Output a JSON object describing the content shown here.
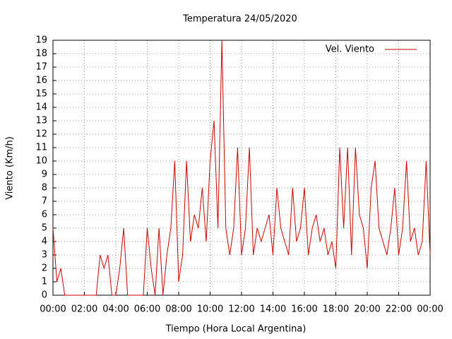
{
  "chart_data": {
    "type": "line",
    "title": "Temperatura 24/05/2020",
    "xlabel": "Tiempo (Hora Local Argentina)",
    "ylabel": "Viento (Km/h)",
    "x": [
      0,
      0.25,
      0.5,
      0.75,
      1,
      1.25,
      1.5,
      1.75,
      2,
      2.25,
      2.5,
      2.75,
      3,
      3.25,
      3.5,
      3.75,
      4,
      4.25,
      4.5,
      4.75,
      5,
      5.25,
      5.5,
      5.75,
      6,
      6.25,
      6.5,
      6.75,
      7,
      7.25,
      7.5,
      7.75,
      8,
      8.25,
      8.5,
      8.75,
      9,
      9.25,
      9.5,
      9.75,
      10,
      10.25,
      10.5,
      10.75,
      11,
      11.25,
      11.5,
      11.75,
      12,
      12.25,
      12.5,
      12.75,
      13,
      13.25,
      13.5,
      13.75,
      14,
      14.25,
      14.5,
      14.75,
      15,
      15.25,
      15.5,
      15.75,
      16,
      16.25,
      16.5,
      16.75,
      17,
      17.25,
      17.5,
      17.75,
      18,
      18.25,
      18.5,
      18.75,
      19,
      19.25,
      19.5,
      19.75,
      20,
      20.25,
      20.5,
      20.75,
      21,
      21.25,
      21.5,
      21.75,
      22,
      22.25,
      22.5,
      22.75,
      23,
      23.25,
      23.5,
      23.75,
      24
    ],
    "series": [
      {
        "name": "Vel. Viento",
        "color": "#cc0000",
        "values": [
          5,
          1,
          2,
          0,
          0,
          0,
          0,
          0,
          0,
          0,
          0,
          0,
          3,
          2,
          3,
          0,
          0,
          2,
          5,
          0,
          0,
          0,
          0,
          0,
          5,
          2,
          0,
          5,
          0,
          3,
          5,
          10,
          1,
          3,
          10,
          4,
          6,
          5,
          8,
          4,
          10,
          13,
          5,
          19,
          5,
          3,
          5,
          11,
          3,
          5,
          11,
          3,
          5,
          4,
          5,
          6,
          3,
          8,
          5,
          4,
          3,
          8,
          4,
          5,
          8,
          3,
          5,
          6,
          4,
          5,
          3,
          4,
          2,
          11,
          5,
          11,
          3,
          11,
          6,
          5,
          2,
          8,
          10,
          5,
          4,
          3,
          5,
          8,
          3,
          5,
          10,
          4,
          5,
          3,
          4,
          10,
          3
        ]
      }
    ],
    "xlim": [
      0,
      24
    ],
    "xticks": [
      {
        "value": 0,
        "label": "00:00"
      },
      {
        "value": 2,
        "label": "02:00"
      },
      {
        "value": 4,
        "label": "04:00"
      },
      {
        "value": 6,
        "label": "06:00"
      },
      {
        "value": 8,
        "label": "08:00"
      },
      {
        "value": 10,
        "label": "10:00"
      },
      {
        "value": 12,
        "label": "12:00"
      },
      {
        "value": 14,
        "label": "14:00"
      },
      {
        "value": 16,
        "label": "16:00"
      },
      {
        "value": 18,
        "label": "18:00"
      },
      {
        "value": 20,
        "label": "20:00"
      },
      {
        "value": 22,
        "label": "22:00"
      },
      {
        "value": 24,
        "label": "00:00"
      }
    ],
    "ylim": [
      0,
      19
    ],
    "yticks": [
      0,
      1,
      2,
      3,
      4,
      5,
      6,
      7,
      8,
      9,
      10,
      11,
      12,
      13,
      14,
      15,
      16,
      17,
      18,
      19
    ],
    "grid": true,
    "legend": "top-right"
  }
}
